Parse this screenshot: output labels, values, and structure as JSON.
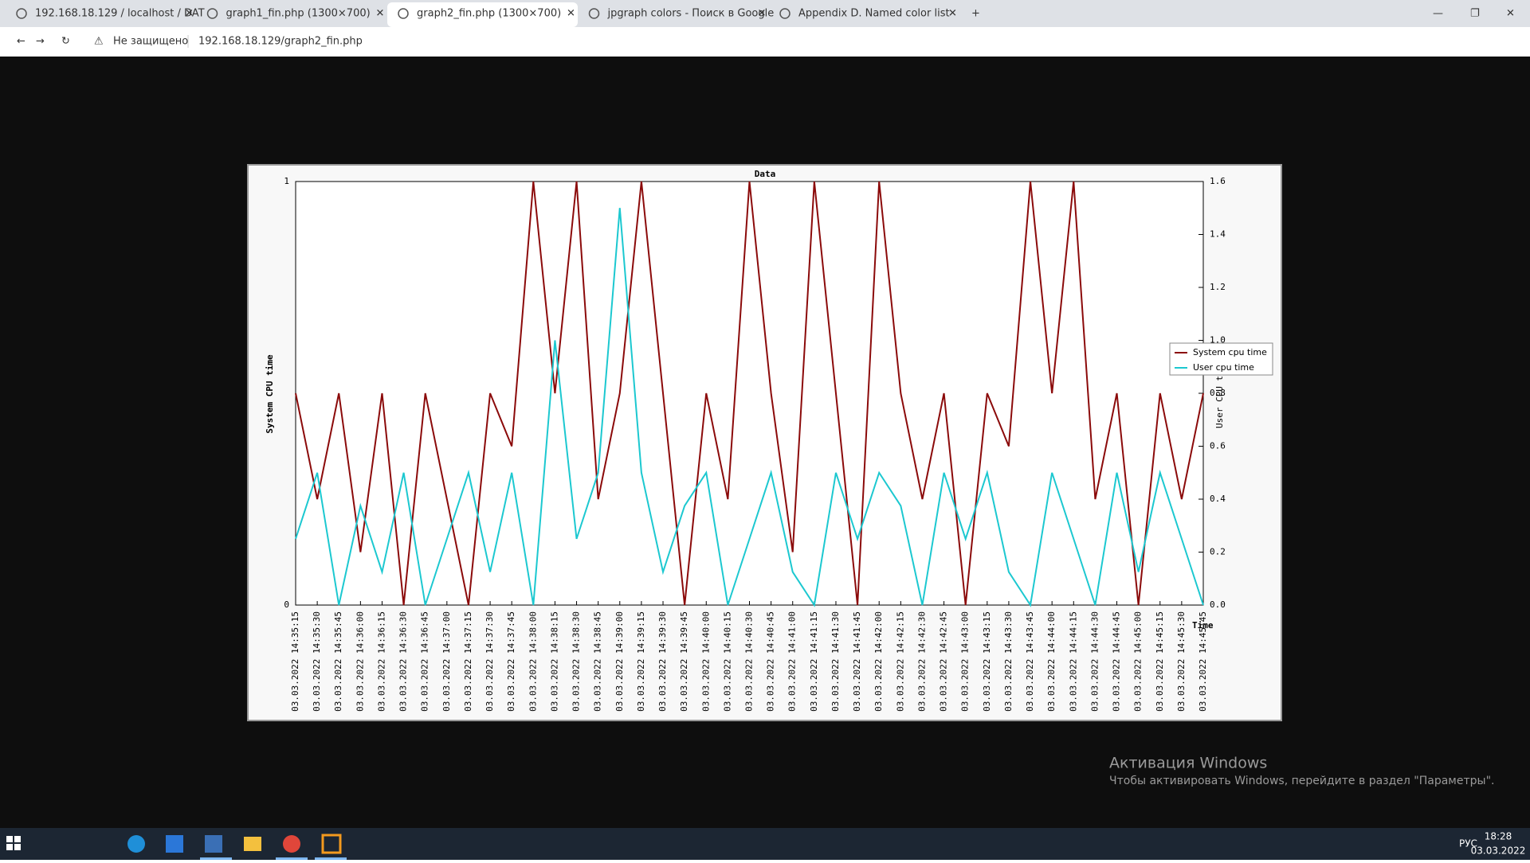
{
  "browser": {
    "tabs": [
      "192.168.18.129 / localhost / DAT",
      "graph1_fin.php (1300×700)",
      "graph2_fin.php (1300×700)",
      "jpgraph colors - Поиск в Google",
      "Appendix D. Named color list"
    ],
    "security": "Не защищено",
    "url": "192.168.18.129/graph2_fin.php"
  },
  "activation": {
    "title": "Активация Windows",
    "text": "Чтобы активировать Windows, перейдите в раздел \"Параметры\"."
  },
  "taskbar": {
    "language": "РУС",
    "time": "18:28",
    "date": "03.03.2022"
  },
  "chart_data": {
    "type": "line",
    "title": "Data",
    "y_label": "System CPU time",
    "y2_label": "User CPU time",
    "x_label": "Time",
    "categories": [
      "03.03.2022 14:35:15",
      "03.03.2022 14:35:30",
      "03.03.2022 14:35:45",
      "03.03.2022 14:36:00",
      "03.03.2022 14:36:15",
      "03.03.2022 14:36:30",
      "03.03.2022 14:36:45",
      "03.03.2022 14:37:00",
      "03.03.2022 14:37:15",
      "03.03.2022 14:37:30",
      "03.03.2022 14:37:45",
      "03.03.2022 14:38:00",
      "03.03.2022 14:38:15",
      "03.03.2022 14:38:30",
      "03.03.2022 14:38:45",
      "03.03.2022 14:39:00",
      "03.03.2022 14:39:15",
      "03.03.2022 14:39:30",
      "03.03.2022 14:39:45",
      "03.03.2022 14:40:00",
      "03.03.2022 14:40:15",
      "03.03.2022 14:40:30",
      "03.03.2022 14:40:45",
      "03.03.2022 14:41:00",
      "03.03.2022 14:41:15",
      "03.03.2022 14:41:30",
      "03.03.2022 14:41:45",
      "03.03.2022 14:42:00",
      "03.03.2022 14:42:15",
      "03.03.2022 14:42:30",
      "03.03.2022 14:42:45",
      "03.03.2022 14:43:00",
      "03.03.2022 14:43:15",
      "03.03.2022 14:43:30",
      "03.03.2022 14:43:45",
      "03.03.2022 14:44:00",
      "03.03.2022 14:44:15",
      "03.03.2022 14:44:30",
      "03.03.2022 14:44:45",
      "03.03.2022 14:45:00",
      "03.03.2022 14:45:15",
      "03.03.2022 14:45:30",
      "03.03.2022 14:45:45"
    ],
    "series": [
      {
        "name": "System cpu time",
        "color": "#8b0a0a",
        "values": [
          0.5,
          0.25,
          0.5,
          0.125,
          0.5,
          0,
          0.5,
          0.25,
          0,
          0.5,
          0.375,
          1,
          0.5,
          1,
          0.25,
          0.5,
          1,
          0.5,
          0,
          0.5,
          0.25,
          1,
          0.5,
          0.125,
          1,
          0.5,
          0,
          1,
          0.5,
          0.25,
          0.5,
          0,
          0.5,
          0.375,
          1,
          0.5,
          1,
          0.25,
          0.5,
          0,
          0.5,
          0.25,
          0.5
        ]
      },
      {
        "name": "User cpu time",
        "color": "#1cc8d0",
        "axis": "y2",
        "values": [
          0.25,
          0.5,
          0,
          0.375,
          0.125,
          0.5,
          0,
          0.25,
          0.5,
          0.125,
          0.5,
          0,
          1,
          0.25,
          0.5,
          1.5,
          0.5,
          0.125,
          0.375,
          0.5,
          0,
          0.25,
          0.5,
          0.125,
          0,
          0.5,
          0.25,
          0.5,
          0.375,
          0,
          0.5,
          0.25,
          0.5,
          0.125,
          0,
          0.5,
          0.25,
          0,
          0.5,
          0.125,
          0.5,
          0.25,
          0
        ]
      }
    ],
    "ylim": [
      0,
      1
    ],
    "yticks": [
      0,
      1
    ],
    "y2lim": [
      0,
      1.6
    ],
    "y2ticks": [
      {
        "value": 0,
        "label": "0.0"
      },
      0.2,
      0.4,
      0.6,
      0.8,
      {
        "value": 1,
        "label": "1.0"
      },
      1.2,
      1.4,
      1.6
    ],
    "grid": false,
    "legend": "right"
  }
}
